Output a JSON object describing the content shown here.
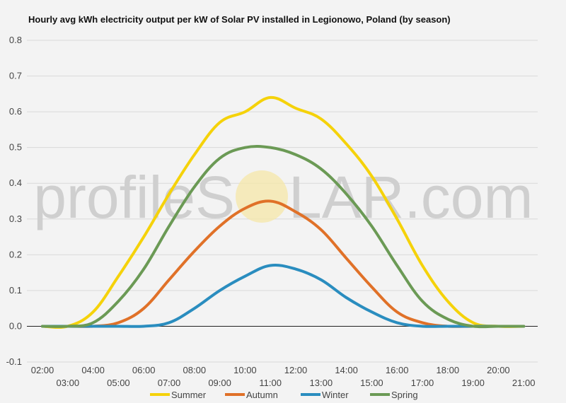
{
  "chart_data": {
    "type": "line",
    "title": "Hourly avg kWh electricity output per kW of Solar PV installed in Legionowo, Poland (by season)",
    "xlabel": "",
    "ylabel": "",
    "x": [
      "02:00",
      "03:00",
      "04:00",
      "05:00",
      "06:00",
      "07:00",
      "08:00",
      "09:00",
      "10:00",
      "11:00",
      "12:00",
      "13:00",
      "14:00",
      "15:00",
      "16:00",
      "17:00",
      "18:00",
      "19:00",
      "20:00",
      "21:00"
    ],
    "ylim": [
      -0.1,
      0.8
    ],
    "yticks": [
      "-0.1",
      "0.0",
      "0.1",
      "0.2",
      "0.3",
      "0.4",
      "0.5",
      "0.6",
      "0.7",
      "0.8"
    ],
    "xticks_top": [
      "02:00",
      "04:00",
      "06:00",
      "08:00",
      "10:00",
      "12:00",
      "14:00",
      "16:00",
      "18:00",
      "20:00"
    ],
    "xticks_bottom": [
      "03:00",
      "05:00",
      "07:00",
      "09:00",
      "11:00",
      "13:00",
      "15:00",
      "17:00",
      "19:00",
      "21:00"
    ],
    "grid": true,
    "legend_position": "bottom",
    "series": [
      {
        "name": "Summer",
        "color": "#f5d20a",
        "values": [
          0.0,
          0.0,
          0.04,
          0.14,
          0.25,
          0.37,
          0.48,
          0.57,
          0.6,
          0.64,
          0.61,
          0.58,
          0.51,
          0.42,
          0.3,
          0.17,
          0.07,
          0.01,
          0.0,
          0.0
        ]
      },
      {
        "name": "Autumn",
        "color": "#e07128",
        "values": [
          0.0,
          0.0,
          0.0,
          0.01,
          0.05,
          0.13,
          0.21,
          0.28,
          0.33,
          0.35,
          0.32,
          0.27,
          0.19,
          0.11,
          0.04,
          0.01,
          0.0,
          0.0,
          0.0,
          0.0
        ]
      },
      {
        "name": "Winter",
        "color": "#2a8dbf",
        "values": [
          0.0,
          0.0,
          0.0,
          0.0,
          0.0,
          0.01,
          0.05,
          0.1,
          0.14,
          0.17,
          0.16,
          0.13,
          0.08,
          0.04,
          0.01,
          0.0,
          0.0,
          0.0,
          0.0,
          0.0
        ]
      },
      {
        "name": "Spring",
        "color": "#6b9a55",
        "values": [
          0.0,
          0.0,
          0.01,
          0.07,
          0.16,
          0.28,
          0.39,
          0.47,
          0.5,
          0.5,
          0.48,
          0.44,
          0.37,
          0.28,
          0.17,
          0.07,
          0.02,
          0.0,
          0.0,
          0.0
        ]
      }
    ]
  },
  "watermark": {
    "text_left": "profileS",
    "text_right": "LAR.com",
    "sun_color": "#f6e7a8"
  }
}
